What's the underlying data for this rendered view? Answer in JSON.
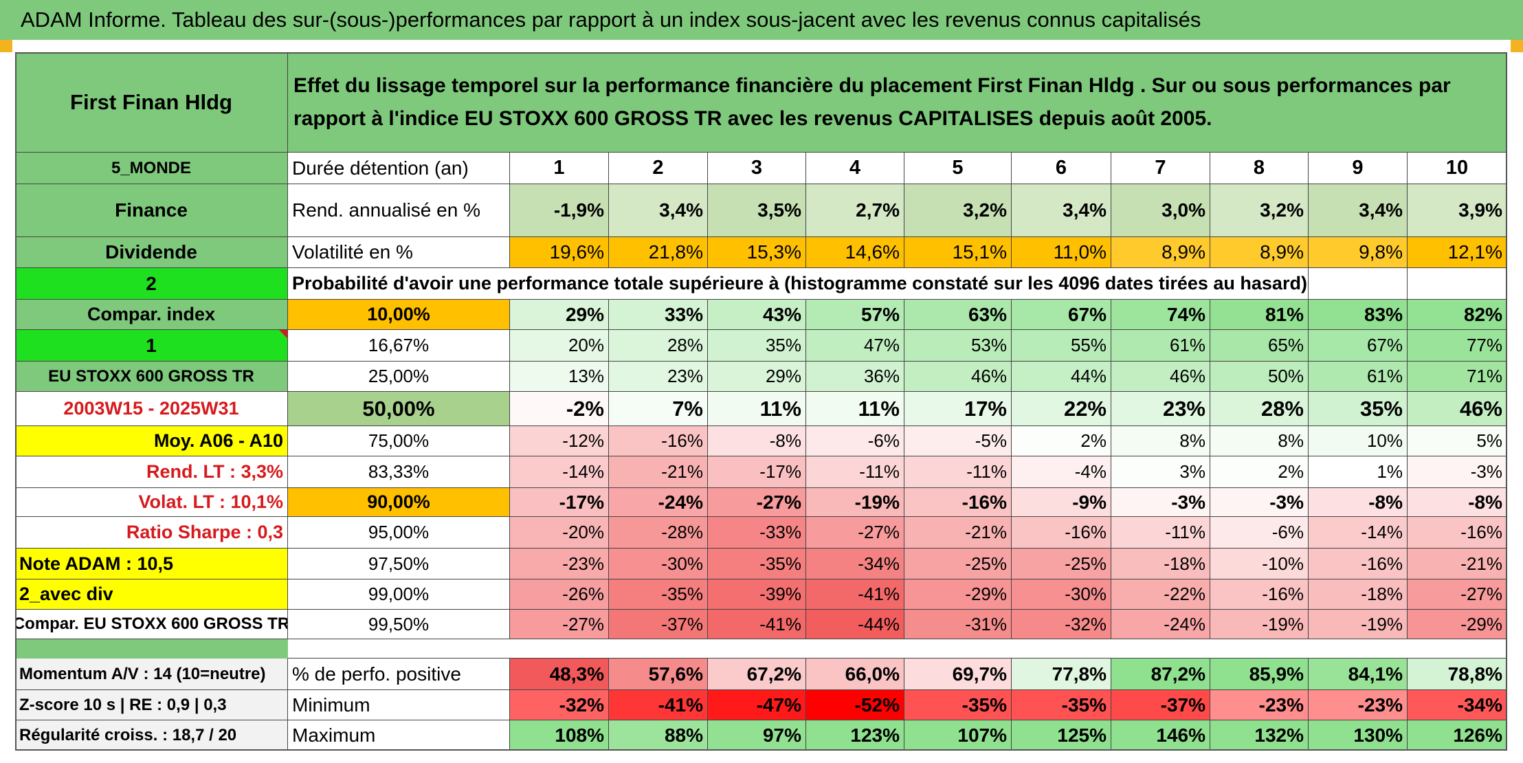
{
  "title": "ADAM Informe. Tableau des sur-(sous-)performances par rapport à un index sous-jacent avec les revenus connus capitalisés",
  "header": {
    "fund": "First Finan Hldg",
    "description": "Effet du lissage temporel sur la performance financière du placement First Finan Hldg . Sur ou sous performances par rapport à l'indice EU STOXX 600 GROSS TR avec les revenus CAPITALISES depuis août 2005."
  },
  "side": [
    "5_MONDE",
    "Finance",
    "Dividende",
    "2",
    "Compar. index",
    "1",
    "EU STOXX 600 GROSS TR",
    "2003W15 - 2025W31",
    "Moy. A06 - A10",
    "Rend. LT :   3,3%",
    "Volat. LT :   10,1%",
    "Ratio Sharpe :   0,3",
    "Note ADAM : 10,5",
    "2_avec div",
    "Compar. EU STOXX 600 GROSS TR"
  ],
  "durations_label": "Durée détention (an)",
  "durations": [
    "1",
    "2",
    "3",
    "4",
    "5",
    "6",
    "7",
    "8",
    "9",
    "10"
  ],
  "rend_label": "Rend. annualisé en %",
  "rend": [
    "-1,9%",
    "3,4%",
    "3,5%",
    "2,7%",
    "3,2%",
    "3,4%",
    "3,0%",
    "3,2%",
    "3,4%",
    "3,9%"
  ],
  "vol_label": "Volatilité en %",
  "vol": [
    "19,6%",
    "21,8%",
    "15,3%",
    "14,6%",
    "15,1%",
    "11,0%",
    "8,9%",
    "8,9%",
    "9,8%",
    "12,1%"
  ],
  "prob_text": "Probabilité d'avoir une performance totale supérieure à (histogramme constaté sur les 4096 dates tirées au hasard)",
  "percentiles": [
    "10,00%",
    "16,67%",
    "25,00%",
    "50,00%",
    "75,00%",
    "83,33%",
    "90,00%",
    "95,00%",
    "97,50%",
    "99,00%",
    "99,50%"
  ],
  "matrix": [
    [
      "29%",
      "33%",
      "43%",
      "57%",
      "63%",
      "67%",
      "74%",
      "81%",
      "83%",
      "82%"
    ],
    [
      "20%",
      "28%",
      "35%",
      "47%",
      "53%",
      "55%",
      "61%",
      "65%",
      "67%",
      "77%"
    ],
    [
      "13%",
      "23%",
      "29%",
      "36%",
      "46%",
      "44%",
      "46%",
      "50%",
      "61%",
      "71%"
    ],
    [
      "-2%",
      "7%",
      "11%",
      "11%",
      "17%",
      "22%",
      "23%",
      "28%",
      "35%",
      "46%"
    ],
    [
      "-12%",
      "-16%",
      "-8%",
      "-6%",
      "-5%",
      "2%",
      "8%",
      "8%",
      "10%",
      "5%"
    ],
    [
      "-14%",
      "-21%",
      "-17%",
      "-11%",
      "-11%",
      "-4%",
      "3%",
      "2%",
      "1%",
      "-3%"
    ],
    [
      "-17%",
      "-24%",
      "-27%",
      "-19%",
      "-16%",
      "-9%",
      "-3%",
      "-3%",
      "-8%",
      "-8%"
    ],
    [
      "-20%",
      "-28%",
      "-33%",
      "-27%",
      "-21%",
      "-16%",
      "-11%",
      "-6%",
      "-14%",
      "-16%"
    ],
    [
      "-23%",
      "-30%",
      "-35%",
      "-34%",
      "-25%",
      "-25%",
      "-18%",
      "-10%",
      "-16%",
      "-21%"
    ],
    [
      "-26%",
      "-35%",
      "-39%",
      "-41%",
      "-29%",
      "-30%",
      "-22%",
      "-16%",
      "-18%",
      "-27%"
    ],
    [
      "-27%",
      "-37%",
      "-41%",
      "-44%",
      "-31%",
      "-32%",
      "-24%",
      "-19%",
      "-19%",
      "-29%"
    ]
  ],
  "bottom": {
    "labels": [
      "Momentum A/V : 14 (10=neutre)",
      "Z-score 10 s | RE : 0,9 | 0,3",
      "Régularité croiss. : 18,7 / 20"
    ],
    "row_labels": [
      "% de perfo. positive",
      "Minimum",
      "Maximum"
    ],
    "positive": [
      "48,3%",
      "57,6%",
      "67,2%",
      "66,0%",
      "69,7%",
      "77,8%",
      "87,2%",
      "85,9%",
      "84,1%",
      "78,8%"
    ],
    "minimum": [
      "-32%",
      "-41%",
      "-47%",
      "-52%",
      "-35%",
      "-35%",
      "-37%",
      "-23%",
      "-23%",
      "-34%"
    ],
    "maximum": [
      "108%",
      "88%",
      "97%",
      "123%",
      "107%",
      "125%",
      "146%",
      "132%",
      "130%",
      "126%"
    ]
  },
  "colors": {
    "header_green": "#7fc97d",
    "bright_green": "#1ee01e",
    "orange": "#ffc000",
    "yellow": "#ffff00",
    "rend_green": "#c6e0b4",
    "label_red": "#d7191c"
  }
}
